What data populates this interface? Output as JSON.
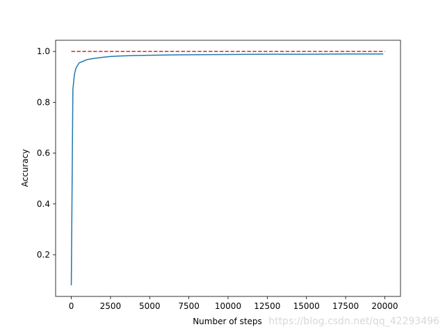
{
  "chart_data": {
    "type": "line",
    "xlabel": "Number of steps",
    "ylabel": "Accuracy",
    "watermark": "https://blog.csdn.net/qq_42293496",
    "xlim": [
      -1000,
      21000
    ],
    "ylim": [
      0.036,
      1.044
    ],
    "xticks": [
      0,
      2500,
      5000,
      7500,
      10000,
      12500,
      15000,
      17500,
      20000
    ],
    "yticks": [
      0.2,
      0.4,
      0.6,
      0.8,
      {
        "value": 1,
        "label": "1.0"
      }
    ],
    "series": [
      {
        "color": "#1f77b4",
        "style": "solid",
        "x": [
          0,
          100,
          200,
          300,
          400,
          500,
          700,
          1000,
          1500,
          2000,
          2500,
          3000,
          4000,
          5000,
          6000,
          7500,
          10000,
          12500,
          15000,
          17500,
          19900
        ],
        "values": [
          0.08,
          0.85,
          0.91,
          0.935,
          0.945,
          0.955,
          0.96,
          0.968,
          0.973,
          0.977,
          0.98,
          0.982,
          0.984,
          0.985,
          0.986,
          0.987,
          0.988,
          0.989,
          0.989,
          0.99,
          0.99
        ]
      },
      {
        "color": "#d62728",
        "style": "dashed",
        "x": [
          0,
          20000
        ],
        "values": [
          1,
          1
        ]
      }
    ]
  }
}
